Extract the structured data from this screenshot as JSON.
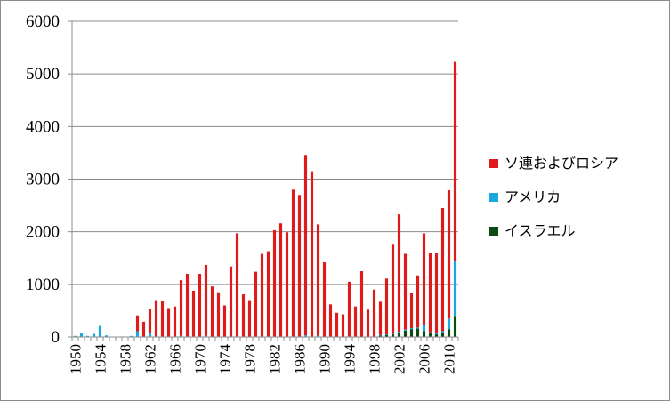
{
  "chart_data": {
    "type": "bar",
    "stacked": true,
    "title": "",
    "xlabel": "",
    "ylabel": "",
    "ylim": [
      0,
      6000
    ],
    "yticks": [
      0,
      1000,
      2000,
      3000,
      4000,
      5000,
      6000
    ],
    "x": [
      1950,
      1951,
      1952,
      1953,
      1954,
      1955,
      1956,
      1957,
      1958,
      1959,
      1960,
      1961,
      1962,
      1963,
      1964,
      1965,
      1966,
      1967,
      1968,
      1969,
      1970,
      1971,
      1972,
      1973,
      1974,
      1975,
      1976,
      1977,
      1978,
      1979,
      1980,
      1981,
      1982,
      1983,
      1984,
      1985,
      1986,
      1987,
      1988,
      1989,
      1990,
      1991,
      1992,
      1993,
      1994,
      1995,
      1996,
      1997,
      1998,
      1999,
      2000,
      2001,
      2002,
      2003,
      2004,
      2005,
      2006,
      2007,
      2008,
      2009,
      2010,
      2011
    ],
    "xtick_labels": [
      "1950",
      "1954",
      "1958",
      "1962",
      "1966",
      "1970",
      "1974",
      "1978",
      "1982",
      "1986",
      "1990",
      "1994",
      "1998",
      "2002",
      "2006",
      "2010"
    ],
    "grid": true,
    "legend_position": "right",
    "series": [
      {
        "name": "イスラエル",
        "color": "#0b4a12",
        "values": [
          0,
          0,
          0,
          0,
          0,
          0,
          0,
          0,
          0,
          0,
          0,
          0,
          0,
          0,
          0,
          0,
          0,
          0,
          0,
          0,
          0,
          0,
          0,
          0,
          0,
          0,
          0,
          0,
          0,
          0,
          0,
          0,
          0,
          0,
          0,
          0,
          0,
          0,
          0,
          0,
          0,
          0,
          0,
          0,
          0,
          0,
          0,
          0,
          0,
          30,
          40,
          50,
          80,
          120,
          150,
          160,
          110,
          70,
          50,
          80,
          150,
          400
        ]
      },
      {
        "name": "アメリカ",
        "color": "#1aa8e0",
        "values": [
          20,
          70,
          20,
          60,
          210,
          30,
          0,
          0,
          0,
          20,
          110,
          10,
          70,
          10,
          10,
          10,
          10,
          20,
          10,
          10,
          10,
          20,
          0,
          10,
          10,
          10,
          10,
          10,
          0,
          10,
          10,
          10,
          10,
          10,
          10,
          10,
          10,
          30,
          10,
          20,
          10,
          10,
          0,
          0,
          10,
          10,
          0,
          0,
          0,
          10,
          10,
          10,
          20,
          20,
          20,
          20,
          120,
          20,
          20,
          30,
          200,
          1050
        ]
      },
      {
        "name": "ソ連およびロシア",
        "color": "#e01a1a",
        "values": [
          0,
          0,
          0,
          0,
          0,
          0,
          0,
          0,
          0,
          0,
          300,
          280,
          470,
          690,
          680,
          540,
          570,
          1060,
          1190,
          870,
          1190,
          1350,
          960,
          840,
          590,
          1330,
          1960,
          800,
          700,
          1230,
          1570,
          1620,
          2020,
          2150,
          1980,
          2790,
          2690,
          3430,
          3140,
          2120,
          1410,
          610,
          460,
          430,
          1040,
          570,
          1250,
          520,
          900,
          630,
          1060,
          1710,
          2230,
          1440,
          660,
          990,
          1740,
          1510,
          1530,
          2340,
          2440,
          3780
        ]
      }
    ]
  }
}
